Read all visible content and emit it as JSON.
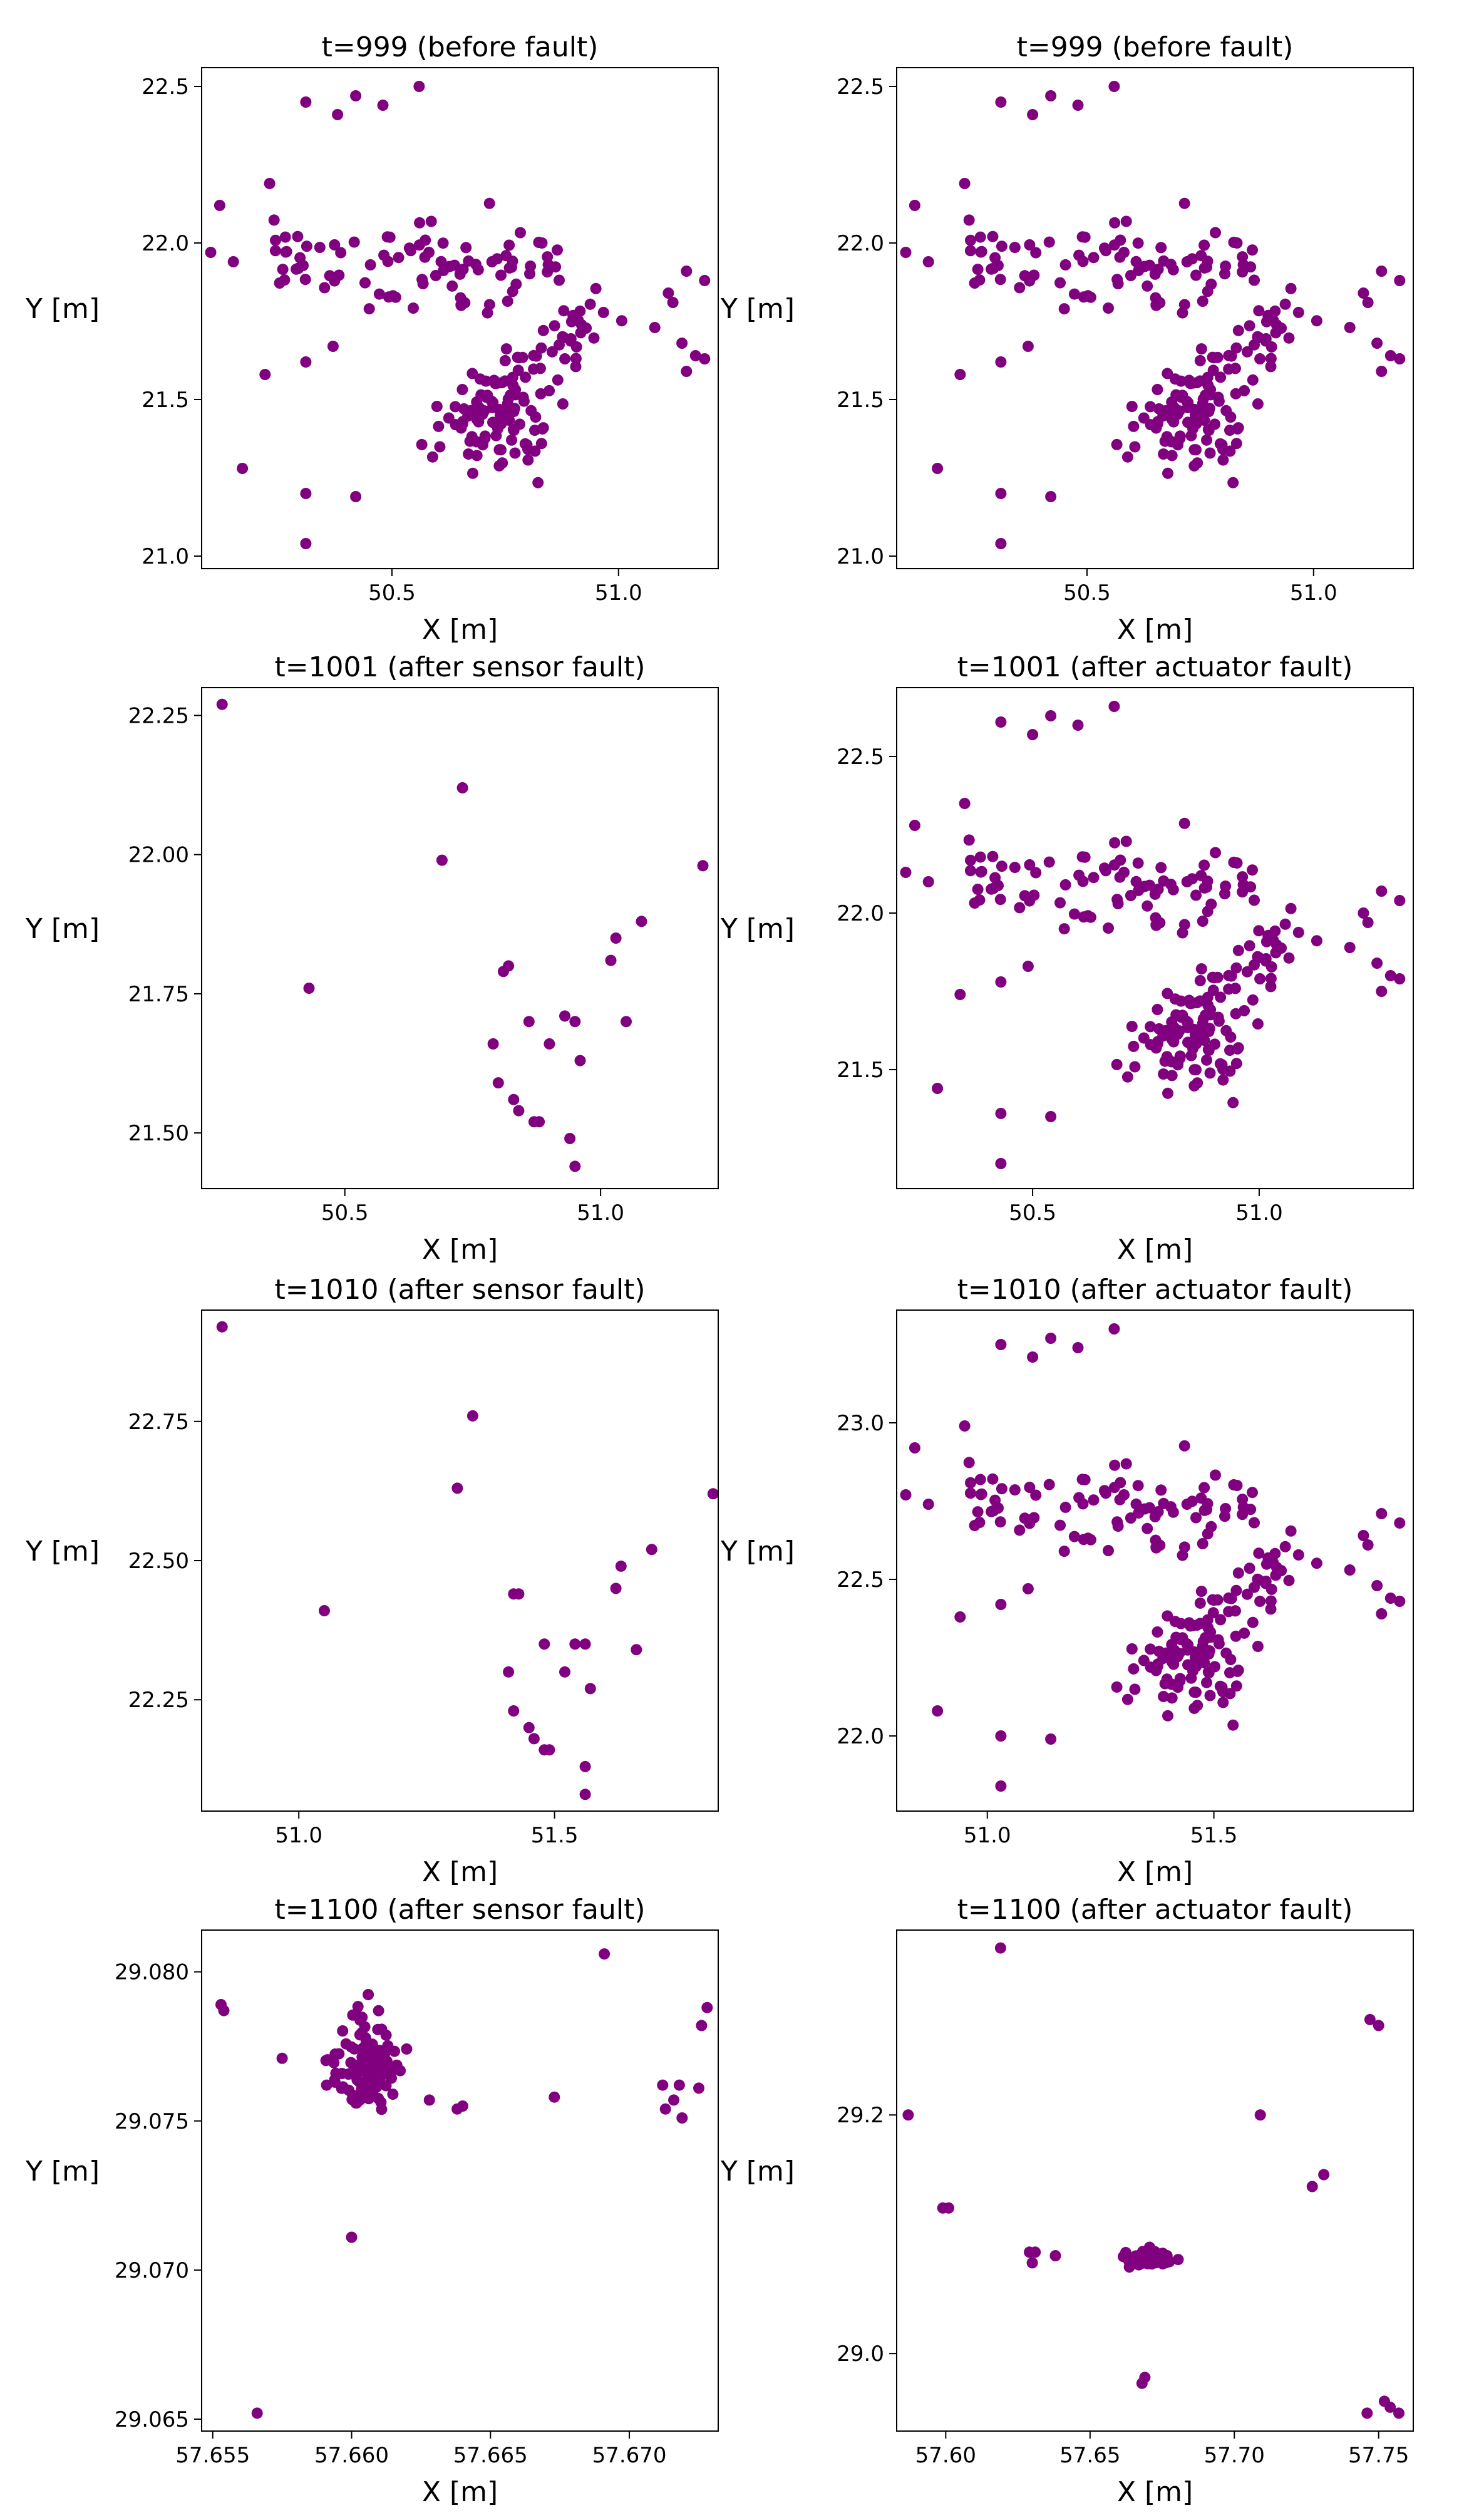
{
  "marker_color": "#800080",
  "chart_data": [
    {
      "type": "scatter",
      "title": "t=999 (before fault)",
      "xlabel": "X [m]",
      "ylabel": "Y [m]",
      "xlim": [
        50.08,
        51.22
      ],
      "ylim": [
        20.96,
        22.56
      ],
      "xticks": [
        {
          "v": 50.5,
          "label": "50.5"
        },
        {
          "v": 51.0,
          "label": "51.0"
        }
      ],
      "yticks": [
        {
          "v": 21.0,
          "label": "21.0"
        },
        {
          "v": 21.5,
          "label": "21.5"
        },
        {
          "v": 22.0,
          "label": "22.0"
        },
        {
          "v": 22.5,
          "label": "22.5"
        }
      ],
      "cluster_model": "base_999",
      "clusters": [
        {
          "label": "upper band",
          "center": [
            50.55,
            21.93
          ],
          "spread": [
            0.28,
            0.07
          ],
          "count": 90
        },
        {
          "label": "lower cluster",
          "center": [
            50.72,
            21.42
          ],
          "spread": [
            0.06,
            0.08
          ],
          "count": 70
        },
        {
          "label": "lower diagonal",
          "center": [
            50.82,
            21.6
          ],
          "spread": [
            0.09,
            0.12
          ],
          "count": 60
        }
      ],
      "points": [
        [
          50.31,
          22.45
        ],
        [
          50.38,
          22.41
        ],
        [
          50.42,
          22.47
        ],
        [
          50.48,
          22.44
        ],
        [
          50.56,
          22.5
        ],
        [
          50.12,
          22.12
        ],
        [
          50.23,
          22.19
        ],
        [
          50.1,
          21.97
        ],
        [
          50.15,
          21.94
        ],
        [
          50.17,
          21.28
        ],
        [
          50.31,
          21.2
        ],
        [
          50.31,
          21.04
        ],
        [
          50.42,
          21.19
        ],
        [
          50.31,
          21.62
        ],
        [
          50.22,
          21.58
        ],
        [
          50.37,
          21.67
        ],
        [
          51.11,
          21.84
        ],
        [
          51.12,
          21.81
        ],
        [
          51.15,
          21.91
        ],
        [
          51.19,
          21.88
        ],
        [
          51.14,
          21.68
        ],
        [
          51.17,
          21.64
        ],
        [
          51.19,
          21.63
        ],
        [
          51.15,
          21.59
        ],
        [
          51.08,
          21.73
        ]
      ]
    },
    {
      "type": "scatter",
      "title": "t=999 (before fault)",
      "xlabel": "X [m]",
      "ylabel": "Y [m]",
      "xlim": [
        50.08,
        51.22
      ],
      "ylim": [
        20.96,
        22.56
      ],
      "xticks": [
        {
          "v": 50.5,
          "label": "50.5"
        },
        {
          "v": 51.0,
          "label": "51.0"
        }
      ],
      "yticks": [
        {
          "v": 21.0,
          "label": "21.0"
        },
        {
          "v": 21.5,
          "label": "21.5"
        },
        {
          "v": 22.0,
          "label": "22.0"
        },
        {
          "v": 22.5,
          "label": "22.5"
        }
      ],
      "cluster_model": "base_999",
      "clusters": [
        {
          "label": "upper band",
          "center": [
            50.55,
            21.93
          ],
          "spread": [
            0.28,
            0.07
          ],
          "count": 90
        },
        {
          "label": "lower cluster",
          "center": [
            50.72,
            21.42
          ],
          "spread": [
            0.06,
            0.08
          ],
          "count": 70
        },
        {
          "label": "lower diagonal",
          "center": [
            50.82,
            21.6
          ],
          "spread": [
            0.09,
            0.12
          ],
          "count": 60
        }
      ],
      "points": [
        [
          50.31,
          22.45
        ],
        [
          50.38,
          22.41
        ],
        [
          50.42,
          22.47
        ],
        [
          50.48,
          22.44
        ],
        [
          50.56,
          22.5
        ],
        [
          50.12,
          22.12
        ],
        [
          50.23,
          22.19
        ],
        [
          50.1,
          21.97
        ],
        [
          50.15,
          21.94
        ],
        [
          50.17,
          21.28
        ],
        [
          50.31,
          21.2
        ],
        [
          50.31,
          21.04
        ],
        [
          50.42,
          21.19
        ],
        [
          50.31,
          21.62
        ],
        [
          50.22,
          21.58
        ],
        [
          50.37,
          21.67
        ],
        [
          51.11,
          21.84
        ],
        [
          51.12,
          21.81
        ],
        [
          51.15,
          21.91
        ],
        [
          51.19,
          21.88
        ],
        [
          51.14,
          21.68
        ],
        [
          51.17,
          21.64
        ],
        [
          51.19,
          21.63
        ],
        [
          51.15,
          21.59
        ],
        [
          51.08,
          21.73
        ]
      ]
    },
    {
      "type": "scatter",
      "title": "t=1001 (after sensor fault)",
      "xlabel": "X [m]",
      "ylabel": "Y [m]",
      "xlim": [
        50.22,
        51.23
      ],
      "ylim": [
        21.4,
        22.3
      ],
      "xticks": [
        {
          "v": 50.5,
          "label": "50.5"
        },
        {
          "v": 51.0,
          "label": "51.0"
        }
      ],
      "yticks": [
        {
          "v": 21.5,
          "label": "21.50"
        },
        {
          "v": 21.75,
          "label": "21.75"
        },
        {
          "v": 22.0,
          "label": "22.00"
        },
        {
          "v": 22.25,
          "label": "22.25"
        }
      ],
      "clusters": [],
      "points": [
        [
          50.26,
          22.27
        ],
        [
          50.43,
          21.76
        ],
        [
          50.69,
          21.99
        ],
        [
          50.73,
          22.12
        ],
        [
          50.82,
          21.8
        ],
        [
          50.81,
          21.79
        ],
        [
          50.79,
          21.66
        ],
        [
          50.8,
          21.59
        ],
        [
          50.83,
          21.56
        ],
        [
          50.84,
          21.54
        ],
        [
          50.87,
          21.52
        ],
        [
          50.88,
          21.52
        ],
        [
          50.86,
          21.7
        ],
        [
          50.9,
          21.66
        ],
        [
          50.93,
          21.71
        ],
        [
          50.95,
          21.7
        ],
        [
          50.96,
          21.63
        ],
        [
          50.94,
          21.49
        ],
        [
          50.95,
          21.44
        ],
        [
          51.02,
          21.81
        ],
        [
          51.03,
          21.85
        ],
        [
          51.08,
          21.88
        ],
        [
          51.05,
          21.7
        ],
        [
          51.2,
          21.98
        ]
      ]
    },
    {
      "type": "scatter",
      "title": "t=1001 (after actuator fault)",
      "xlabel": "X [m]",
      "ylabel": "Y [m]",
      "xlim": [
        50.2,
        51.34
      ],
      "ylim": [
        21.12,
        22.72
      ],
      "xticks": [
        {
          "v": 50.5,
          "label": "50.5"
        },
        {
          "v": 51.0,
          "label": "51.0"
        }
      ],
      "yticks": [
        {
          "v": 21.5,
          "label": "21.5"
        },
        {
          "v": 22.0,
          "label": "22.0"
        },
        {
          "v": 22.5,
          "label": "22.5"
        }
      ],
      "cluster_model": "base_999",
      "clusters": [
        {
          "label": "upper band",
          "center": [
            50.67,
            22.09
          ],
          "spread": [
            0.28,
            0.07
          ],
          "count": 90
        },
        {
          "label": "lower cluster",
          "center": [
            50.84,
            21.58
          ],
          "spread": [
            0.06,
            0.08
          ],
          "count": 70
        },
        {
          "label": "lower diagonal",
          "center": [
            50.94,
            21.76
          ],
          "spread": [
            0.09,
            0.12
          ],
          "count": 60
        }
      ],
      "points": [
        [
          50.43,
          22.61
        ],
        [
          50.5,
          22.57
        ],
        [
          50.54,
          22.63
        ],
        [
          50.6,
          22.6
        ],
        [
          50.68,
          22.66
        ],
        [
          50.24,
          22.28
        ],
        [
          50.35,
          22.35
        ],
        [
          50.22,
          22.13
        ],
        [
          50.27,
          22.1
        ],
        [
          50.29,
          21.44
        ],
        [
          50.43,
          21.36
        ],
        [
          50.43,
          21.2
        ],
        [
          50.54,
          21.35
        ],
        [
          50.43,
          21.78
        ],
        [
          50.34,
          21.74
        ],
        [
          50.49,
          21.83
        ],
        [
          51.23,
          22.0
        ],
        [
          51.24,
          21.97
        ],
        [
          51.27,
          22.07
        ],
        [
          51.31,
          22.04
        ],
        [
          51.26,
          21.84
        ],
        [
          51.29,
          21.8
        ],
        [
          51.31,
          21.79
        ],
        [
          51.27,
          21.75
        ],
        [
          51.2,
          21.89
        ]
      ]
    },
    {
      "type": "scatter",
      "title": "t=1010 (after sensor fault)",
      "xlabel": "X [m]",
      "ylabel": "Y [m]",
      "xlim": [
        50.81,
        51.82
      ],
      "ylim": [
        22.05,
        22.95
      ],
      "xticks": [
        {
          "v": 51.0,
          "label": "51.0"
        },
        {
          "v": 51.5,
          "label": "51.5"
        }
      ],
      "yticks": [
        {
          "v": 22.25,
          "label": "22.25"
        },
        {
          "v": 22.5,
          "label": "22.50"
        },
        {
          "v": 22.75,
          "label": "22.75"
        }
      ],
      "clusters": [],
      "points": [
        [
          50.85,
          22.92
        ],
        [
          51.05,
          22.41
        ],
        [
          51.31,
          22.63
        ],
        [
          51.34,
          22.76
        ],
        [
          51.43,
          22.44
        ],
        [
          51.42,
          22.44
        ],
        [
          51.41,
          22.3
        ],
        [
          51.42,
          22.23
        ],
        [
          51.45,
          22.2
        ],
        [
          51.46,
          22.18
        ],
        [
          51.48,
          22.16
        ],
        [
          51.49,
          22.16
        ],
        [
          51.48,
          22.35
        ],
        [
          51.52,
          22.3
        ],
        [
          51.54,
          22.35
        ],
        [
          51.56,
          22.35
        ],
        [
          51.57,
          22.27
        ],
        [
          51.56,
          22.13
        ],
        [
          51.56,
          22.08
        ],
        [
          51.62,
          22.45
        ],
        [
          51.63,
          22.49
        ],
        [
          51.69,
          22.52
        ],
        [
          51.66,
          22.34
        ],
        [
          51.81,
          22.62
        ]
      ]
    },
    {
      "type": "scatter",
      "title": "t=1010 (after actuator fault)",
      "xlabel": "X [m]",
      "ylabel": "Y [m]",
      "xlim": [
        50.8,
        51.94
      ],
      "ylim": [
        21.76,
        23.36
      ],
      "xticks": [
        {
          "v": 51.0,
          "label": "51.0"
        },
        {
          "v": 51.5,
          "label": "51.5"
        }
      ],
      "yticks": [
        {
          "v": 22.0,
          "label": "22.0"
        },
        {
          "v": 22.5,
          "label": "22.5"
        },
        {
          "v": 23.0,
          "label": "23.0"
        }
      ],
      "cluster_model": "base_999",
      "clusters": [
        {
          "label": "upper band",
          "center": [
            51.27,
            22.73
          ],
          "spread": [
            0.28,
            0.07
          ],
          "count": 90
        },
        {
          "label": "lower cluster",
          "center": [
            51.44,
            22.22
          ],
          "spread": [
            0.06,
            0.08
          ],
          "count": 70
        },
        {
          "label": "lower diagonal",
          "center": [
            51.54,
            22.4
          ],
          "spread": [
            0.09,
            0.12
          ],
          "count": 60
        }
      ],
      "points": [
        [
          51.03,
          23.25
        ],
        [
          51.1,
          23.21
        ],
        [
          51.14,
          23.27
        ],
        [
          51.2,
          23.24
        ],
        [
          51.28,
          23.3
        ],
        [
          50.84,
          22.92
        ],
        [
          50.95,
          22.99
        ],
        [
          50.82,
          22.77
        ],
        [
          50.87,
          22.74
        ],
        [
          50.89,
          22.08
        ],
        [
          51.03,
          22.0
        ],
        [
          51.03,
          21.84
        ],
        [
          51.14,
          21.99
        ],
        [
          51.03,
          22.42
        ],
        [
          50.94,
          22.38
        ],
        [
          51.09,
          22.47
        ],
        [
          51.83,
          22.64
        ],
        [
          51.84,
          22.61
        ],
        [
          51.87,
          22.71
        ],
        [
          51.91,
          22.68
        ],
        [
          51.86,
          22.48
        ],
        [
          51.89,
          22.44
        ],
        [
          51.91,
          22.43
        ],
        [
          51.87,
          22.39
        ],
        [
          51.8,
          22.53
        ]
      ]
    },
    {
      "type": "scatter",
      "title": "t=1100 (after sensor fault)",
      "xlabel": "X [m]",
      "ylabel": "Y [m]",
      "xlim": [
        57.6546,
        57.6732
      ],
      "ylim": [
        29.0646,
        29.0814
      ],
      "xticks": [
        {
          "v": 57.655,
          "label": "57.655"
        },
        {
          "v": 57.66,
          "label": "57.660"
        },
        {
          "v": 57.665,
          "label": "57.665"
        },
        {
          "v": 57.67,
          "label": "57.670"
        }
      ],
      "yticks": [
        {
          "v": 29.065,
          "label": "29.065"
        },
        {
          "v": 29.07,
          "label": "29.070"
        },
        {
          "v": 29.075,
          "label": "29.075"
        },
        {
          "v": 29.08,
          "label": "29.080"
        }
      ],
      "clusters": [
        {
          "label": "dense cluster",
          "center": [
            57.6605,
            29.0769
          ],
          "spread": [
            0.0006,
            0.0007
          ],
          "count": 120
        }
      ],
      "points": [
        [
          57.6553,
          29.0789
        ],
        [
          57.6554,
          29.0787
        ],
        [
          57.6575,
          29.0771
        ],
        [
          57.6591,
          29.0762
        ],
        [
          57.6594,
          29.0763
        ],
        [
          57.6601,
          29.0758
        ],
        [
          57.6603,
          29.0757
        ],
        [
          57.6628,
          29.0757
        ],
        [
          57.6638,
          29.0754
        ],
        [
          57.664,
          29.0755
        ],
        [
          57.6673,
          29.0758
        ],
        [
          57.6691,
          29.0806
        ],
        [
          57.6712,
          29.0762
        ],
        [
          57.6718,
          29.0762
        ],
        [
          57.6716,
          29.0757
        ],
        [
          57.6713,
          29.0754
        ],
        [
          57.6719,
          29.0751
        ],
        [
          57.6725,
          29.0761
        ],
        [
          57.6726,
          29.0782
        ],
        [
          57.6728,
          29.0788
        ],
        [
          57.66,
          29.0711
        ],
        [
          57.6566,
          29.0652
        ]
      ]
    },
    {
      "type": "scatter",
      "title": "t=1100 (after actuator fault)",
      "xlabel": "X [m]",
      "ylabel": "Y [m]",
      "xlim": [
        57.583,
        57.762
      ],
      "ylim": [
        28.935,
        29.355
      ],
      "xticks": [
        {
          "v": 57.6,
          "label": "57.60"
        },
        {
          "v": 57.65,
          "label": "57.65"
        },
        {
          "v": 57.7,
          "label": "57.70"
        },
        {
          "v": 57.75,
          "label": "57.75"
        }
      ],
      "yticks": [
        {
          "v": 29.0,
          "label": "29.0"
        },
        {
          "v": 29.2,
          "label": "29.2"
        }
      ],
      "clusters": [
        {
          "label": "dense cluster",
          "center": [
            57.671,
            29.08
          ],
          "spread": [
            0.004,
            0.003
          ],
          "count": 80
        }
      ],
      "points": [
        [
          57.619,
          29.34
        ],
        [
          57.587,
          29.2
        ],
        [
          57.599,
          29.122
        ],
        [
          57.601,
          29.122
        ],
        [
          57.629,
          29.085
        ],
        [
          57.631,
          29.085
        ],
        [
          57.63,
          29.076
        ],
        [
          57.638,
          29.082
        ],
        [
          57.668,
          28.975
        ],
        [
          57.669,
          28.98
        ],
        [
          57.709,
          29.2
        ],
        [
          57.727,
          29.14
        ],
        [
          57.731,
          29.15
        ],
        [
          57.747,
          29.28
        ],
        [
          57.75,
          29.275
        ],
        [
          57.746,
          28.95
        ],
        [
          57.752,
          28.96
        ],
        [
          57.754,
          28.955
        ],
        [
          57.757,
          28.95
        ]
      ]
    }
  ]
}
